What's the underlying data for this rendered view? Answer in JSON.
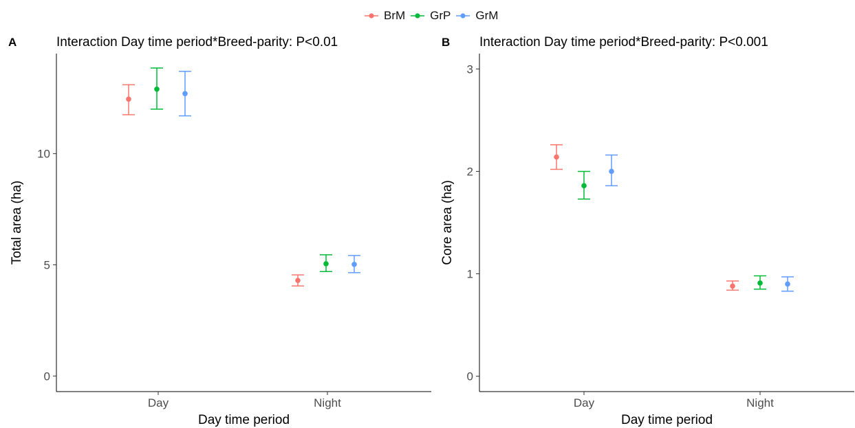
{
  "legend": {
    "items": [
      {
        "label": "BrM",
        "color": "#F8766D"
      },
      {
        "label": "GrP",
        "color": "#00BA38"
      },
      {
        "label": "GrM",
        "color": "#619CFF"
      }
    ]
  },
  "chart_data": [
    {
      "type": "scatter",
      "panel_label": "A",
      "title": "Interaction Day time period*Breed-parity: P<0.01",
      "xlabel": "Day time period",
      "ylabel": "Total area (ha)",
      "categories": [
        "Day",
        "Night"
      ],
      "ylim": [
        -0.7,
        14.5
      ],
      "yticks": [
        "0",
        "5",
        "10"
      ],
      "yticks_values": [
        0,
        5,
        10
      ],
      "grid": false,
      "errorbars": true,
      "series": [
        {
          "name": "BrM",
          "color": "#F8766D",
          "values": [
            12.45,
            4.3
          ],
          "lower": [
            11.75,
            4.05
          ],
          "upper": [
            13.1,
            4.55
          ]
        },
        {
          "name": "GrP",
          "color": "#00BA38",
          "values": [
            12.9,
            5.05
          ],
          "lower": [
            12.0,
            4.7
          ],
          "upper": [
            13.85,
            5.45
          ]
        },
        {
          "name": "GrM",
          "color": "#619CFF",
          "values": [
            12.7,
            5.02
          ],
          "lower": [
            11.7,
            4.65
          ],
          "upper": [
            13.7,
            5.42
          ]
        }
      ]
    },
    {
      "type": "scatter",
      "panel_label": "B",
      "title": "Interaction Day time period*Breed-parity: P<0.001",
      "xlabel": "Day time period",
      "ylabel": "Core area (ha)",
      "categories": [
        "Day",
        "Night"
      ],
      "ylim": [
        -0.15,
        3.15
      ],
      "yticks": [
        "0",
        "1",
        "2",
        "3"
      ],
      "yticks_values": [
        0,
        1,
        2,
        3
      ],
      "grid": false,
      "errorbars": true,
      "series": [
        {
          "name": "BrM",
          "color": "#F8766D",
          "values": [
            2.14,
            0.88
          ],
          "lower": [
            2.02,
            0.84
          ],
          "upper": [
            2.26,
            0.93
          ]
        },
        {
          "name": "GrP",
          "color": "#00BA38",
          "values": [
            1.86,
            0.91
          ],
          "lower": [
            1.73,
            0.85
          ],
          "upper": [
            2.0,
            0.98
          ]
        },
        {
          "name": "GrM",
          "color": "#619CFF",
          "values": [
            2.0,
            0.9
          ],
          "lower": [
            1.86,
            0.83
          ],
          "upper": [
            2.16,
            0.97
          ]
        }
      ]
    }
  ]
}
